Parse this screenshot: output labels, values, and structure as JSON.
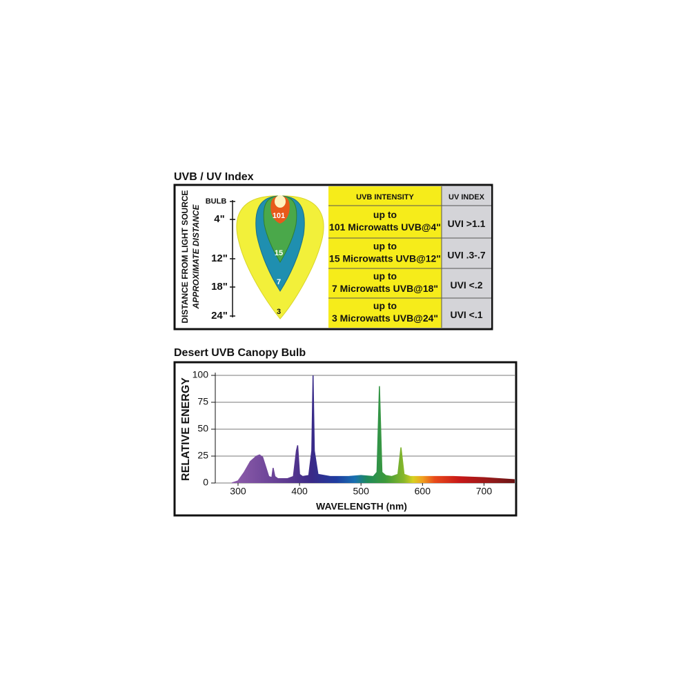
{
  "uv_index": {
    "title": "UVB / UV Index",
    "axis_label": "DISTANCE FROM LIGHT SOURCE",
    "axis_sublabel": "APPROXIMATE DISTANCE",
    "distances": [
      "BULB",
      "4\"",
      "12\"",
      "18\"",
      "24\""
    ],
    "zones": [
      "101",
      "15",
      "7",
      "3"
    ],
    "table": {
      "headers": [
        "UVB INTENSITY",
        "UV INDEX"
      ],
      "rows": [
        [
          "up to",
          "101 Microwatts UVB@4\"",
          "UVI >1.1"
        ],
        [
          "up to",
          "15 Microwatts UVB@12\"",
          "UVI .3-.7"
        ],
        [
          "up to",
          "7 Microwatts UVB@18\"",
          "UVI <.2"
        ],
        [
          "up to",
          "3 Microwatts UVB@24\"",
          "UVI <.1"
        ]
      ]
    }
  },
  "chart_data": {
    "type": "area",
    "title": "Desert UVB Canopy Bulb",
    "x_label": "WAVELENGTH (nm)",
    "y_label": "RELATIVE ENERGY",
    "x": [
      290,
      300,
      310,
      320,
      330,
      335,
      340,
      345,
      350,
      355,
      357,
      360,
      365,
      380,
      390,
      395,
      397,
      400,
      405,
      415,
      420,
      422,
      424,
      430,
      450,
      480,
      500,
      520,
      526,
      530,
      534,
      540,
      550,
      560,
      565,
      570,
      580,
      600,
      650,
      700,
      750
    ],
    "values": [
      0,
      2,
      10,
      20,
      25,
      26,
      24,
      15,
      6,
      5,
      14,
      6,
      4,
      4,
      6,
      30,
      35,
      8,
      6,
      7,
      30,
      100,
      30,
      8,
      6,
      6,
      7,
      6,
      10,
      90,
      10,
      7,
      6,
      8,
      33,
      8,
      6,
      6,
      6,
      5,
      3
    ],
    "xlim": [
      263,
      750
    ],
    "ylim": [
      0,
      100
    ],
    "xticks": [
      300,
      400,
      500,
      600,
      700
    ],
    "yticks": [
      0,
      25,
      50,
      75,
      100
    ],
    "grid": true
  }
}
